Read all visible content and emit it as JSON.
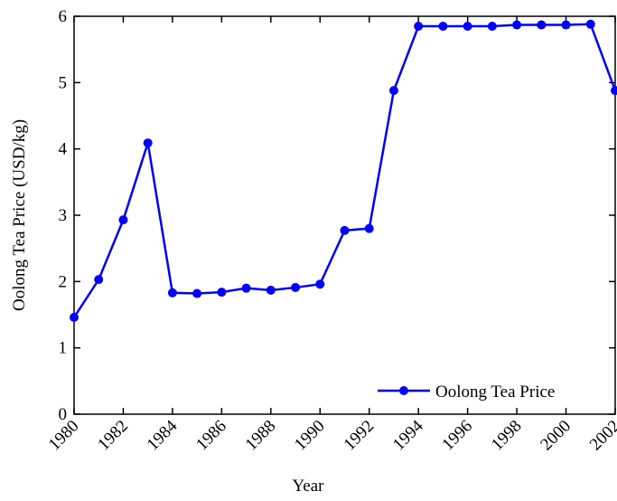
{
  "chart_data": {
    "type": "line",
    "x_label": "Year",
    "y_label": "Oolong Tea Price (USD/kg)",
    "x": [
      1980,
      1981,
      1982,
      1983,
      1984,
      1985,
      1986,
      1987,
      1988,
      1989,
      1990,
      1991,
      1992,
      1993,
      1994,
      1995,
      1996,
      1997,
      1998,
      1999,
      2000,
      2001,
      2002
    ],
    "series": [
      {
        "name": "Oolong Tea Price",
        "color": "#0000ff",
        "values": [
          1.46,
          2.03,
          2.93,
          4.09,
          1.83,
          1.82,
          1.84,
          1.9,
          1.87,
          1.91,
          1.96,
          2.77,
          2.8,
          4.88,
          5.85,
          5.85,
          5.85,
          5.85,
          5.87,
          5.87,
          5.87,
          5.88,
          4.88
        ]
      }
    ],
    "xlim": [
      1980,
      2002
    ],
    "xticks": [
      1980,
      1982,
      1984,
      1986,
      1988,
      1990,
      1992,
      1994,
      1996,
      1998,
      2000,
      2002
    ],
    "ylim": [
      0,
      6
    ],
    "yticks": [
      0,
      1,
      2,
      3,
      4,
      5,
      6
    ],
    "legend": "lower right",
    "grid": false
  }
}
